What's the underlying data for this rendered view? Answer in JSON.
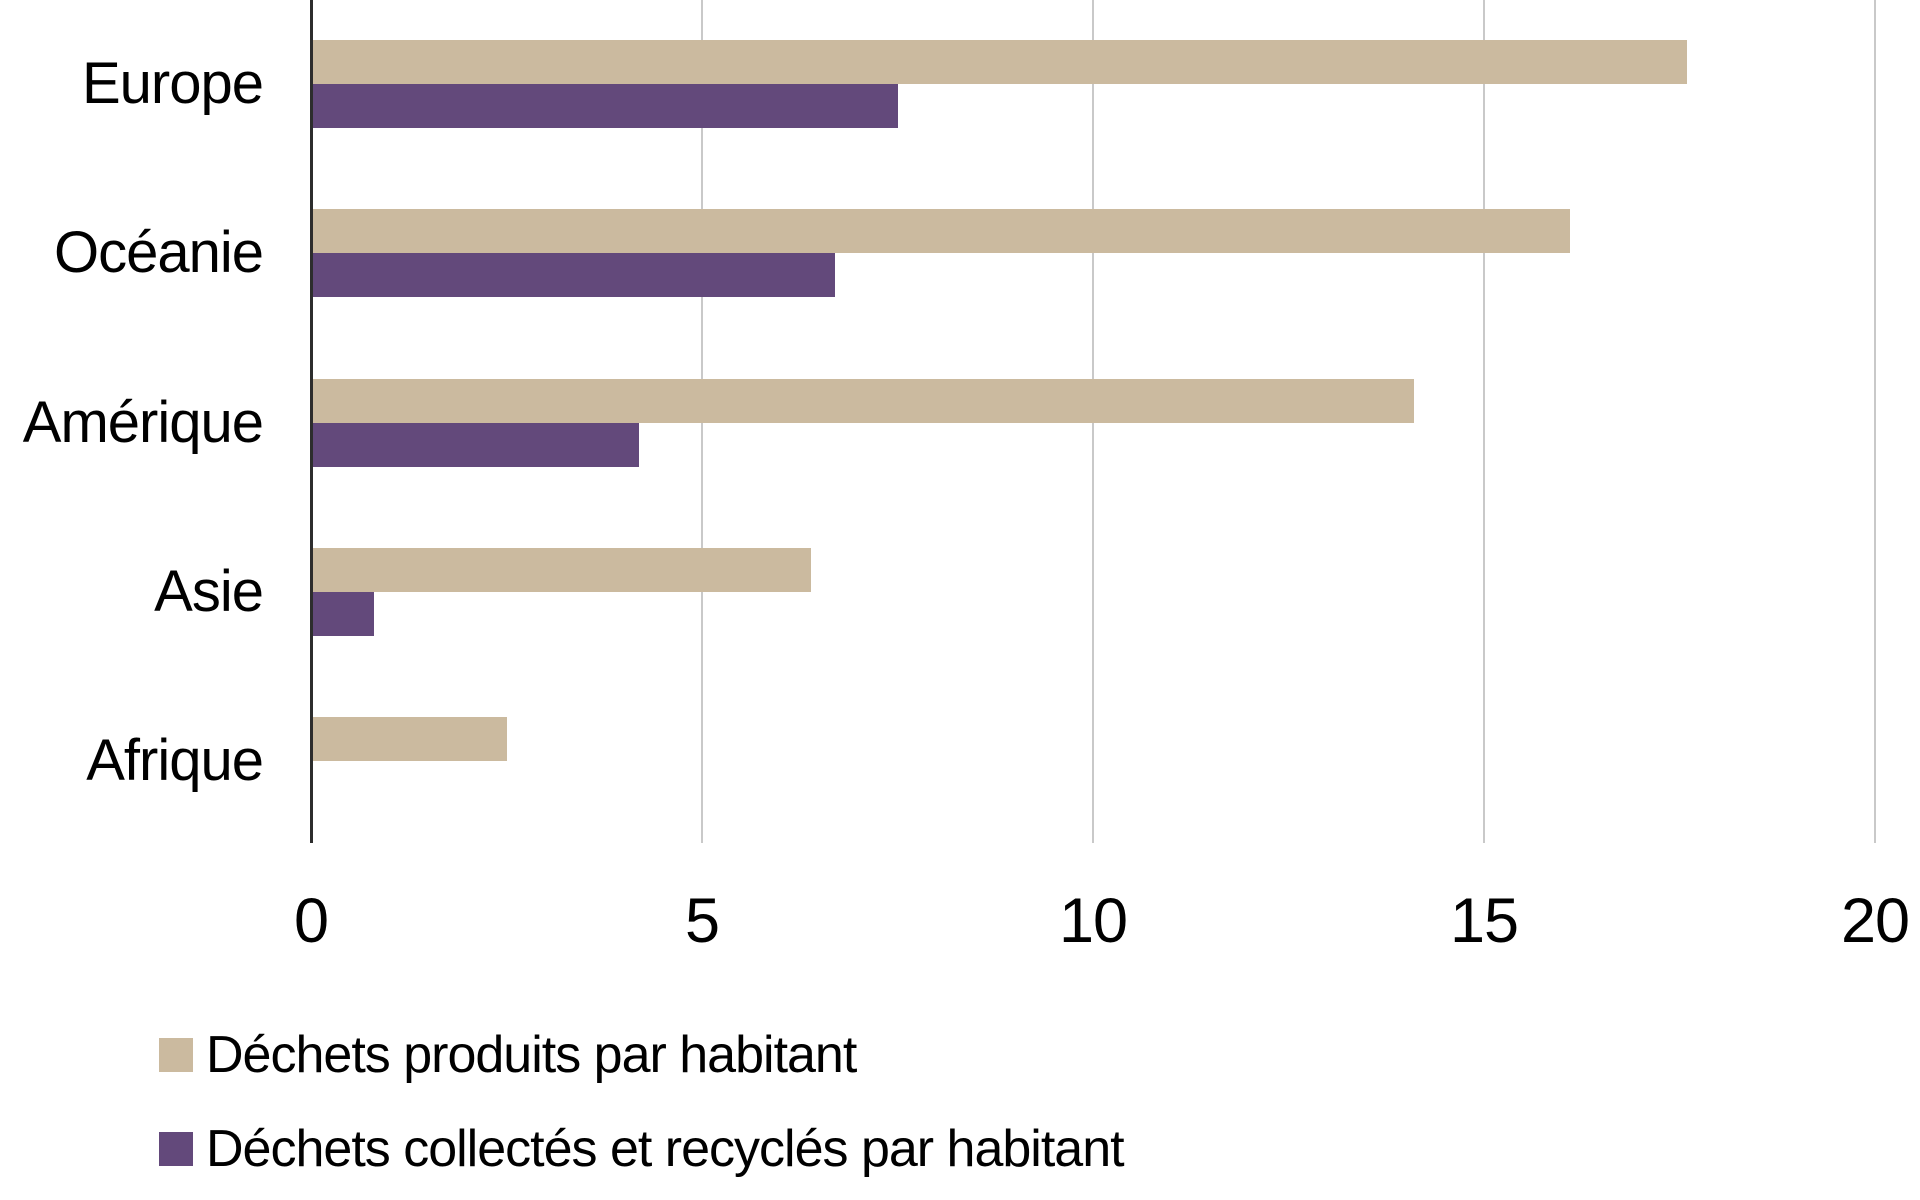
{
  "chart_data": {
    "type": "bar",
    "orientation": "horizontal",
    "title": "",
    "xlabel": "",
    "ylabel": "",
    "categories": [
      "Europe",
      "Océanie",
      "Amérique",
      "Asie",
      "Afrique"
    ],
    "series": [
      {
        "name": "Déchets produits par habitant",
        "color": "#CBBA9F",
        "values": [
          17.6,
          16.1,
          14.1,
          6.4,
          2.5
        ]
      },
      {
        "name": "Déchets collectés et recyclés par habitant",
        "color": "#63497B",
        "values": [
          7.5,
          6.7,
          4.2,
          0.8,
          0
        ]
      }
    ],
    "xlim": [
      0,
      20
    ],
    "xticks": [
      0,
      5,
      10,
      15,
      20
    ],
    "grid": "vertical",
    "legend_position": "bottom-left"
  },
  "colors": {
    "background": "#FFFFFF",
    "gridline": "#C9C9C9",
    "axis_line": "#2D2D2D",
    "text": "#000000"
  }
}
